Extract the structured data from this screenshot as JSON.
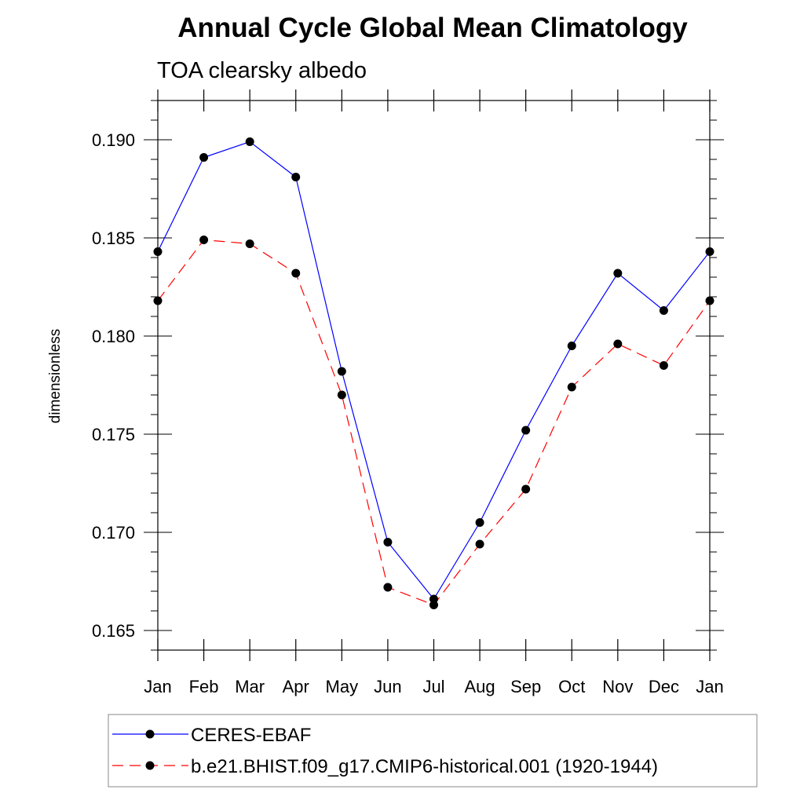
{
  "chart_data": {
    "type": "line",
    "title": "Annual Cycle Global Mean Climatology",
    "subtitle": "TOA clearsky albedo",
    "xlabel": "",
    "ylabel": "dimensionless",
    "categories": [
      "Jan",
      "Feb",
      "Mar",
      "Apr",
      "May",
      "Jun",
      "Jul",
      "Aug",
      "Sep",
      "Oct",
      "Nov",
      "Dec",
      "Jan"
    ],
    "yticks": [
      "0.165",
      "0.170",
      "0.175",
      "0.180",
      "0.185",
      "0.190"
    ],
    "ylim": [
      0.164,
      0.192
    ],
    "grid": false,
    "legend_position": "bottom",
    "series": [
      {
        "name": "CERES-EBAF",
        "color": "#0000ff",
        "line_style": "solid",
        "marker": "filled-circle",
        "values": [
          0.1843,
          0.1891,
          0.1899,
          0.1881,
          0.1782,
          0.1695,
          0.1666,
          0.1705,
          0.1752,
          0.1795,
          0.1832,
          0.1813,
          0.1843
        ]
      },
      {
        "name": "b.e21.BHIST.f09_g17.CMIP6-historical.001 (1920-1944)",
        "color": "#ff0000",
        "line_style": "dashed",
        "marker": "filled-circle",
        "values": [
          0.1818,
          0.1849,
          0.1847,
          0.1832,
          0.177,
          0.1672,
          0.1663,
          0.1694,
          0.1722,
          0.1774,
          0.1796,
          0.1785,
          0.1818
        ]
      }
    ]
  }
}
